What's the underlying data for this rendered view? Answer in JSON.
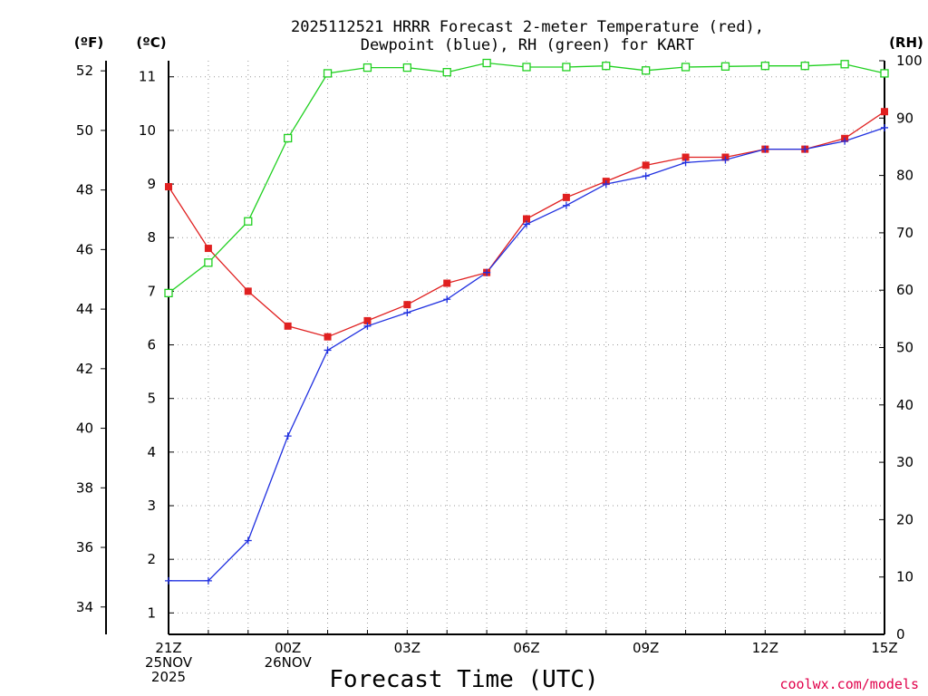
{
  "chart_data": {
    "type": "line",
    "title_line1": "2025112521 HRRR Forecast 2-meter Temperature (red),",
    "title_line2": "Dewpoint (blue), RH (green) for KART",
    "xlabel": "Forecast Time (UTC)",
    "credit": "coolwx.com/models",
    "unit_left_f": "(ºF)",
    "unit_left_c": "(ºC)",
    "unit_right_rh": "(RH)",
    "x_hours": [
      0,
      1,
      2,
      3,
      4,
      5,
      6,
      7,
      8,
      9,
      10,
      11,
      12,
      13,
      14,
      15,
      16,
      17,
      18
    ],
    "x_ticks": [
      {
        "hour": 0,
        "lines": [
          "21Z",
          "25NOV",
          "2025"
        ]
      },
      {
        "hour": 3,
        "lines": [
          "00Z",
          "26NOV"
        ]
      },
      {
        "hour": 6,
        "lines": [
          "03Z"
        ]
      },
      {
        "hour": 9,
        "lines": [
          "06Z"
        ]
      },
      {
        "hour": 12,
        "lines": [
          "09Z"
        ]
      },
      {
        "hour": 15,
        "lines": [
          "12Z"
        ]
      },
      {
        "hour": 18,
        "lines": [
          "15Z"
        ]
      }
    ],
    "celsius_ticks": [
      1,
      2,
      3,
      4,
      5,
      6,
      7,
      8,
      9,
      10,
      11
    ],
    "fahrenheit_ticks": [
      34,
      36,
      38,
      40,
      42,
      44,
      46,
      48,
      50,
      52
    ],
    "rh_ticks": [
      0,
      10,
      20,
      30,
      40,
      50,
      60,
      70,
      80,
      90,
      100
    ],
    "c_range": [
      0.6,
      11.3
    ],
    "rh_range": [
      0,
      100
    ],
    "grid": true,
    "series": [
      {
        "name": "Temperature",
        "units": "C",
        "color": "#e02020",
        "marker": "square-filled",
        "values": [
          8.95,
          7.8,
          7.0,
          6.35,
          6.15,
          6.45,
          6.75,
          7.15,
          7.35,
          8.35,
          8.75,
          9.05,
          9.35,
          9.5,
          9.5,
          9.65,
          9.65,
          9.85,
          10.35
        ]
      },
      {
        "name": "Dewpoint",
        "units": "C",
        "color": "#2030e0",
        "marker": "plus",
        "values": [
          1.6,
          1.6,
          2.35,
          4.3,
          5.9,
          6.35,
          6.6,
          6.85,
          7.35,
          8.25,
          8.6,
          9.0,
          9.15,
          9.4,
          9.45,
          9.65,
          9.65,
          9.8,
          10.05
        ]
      },
      {
        "name": "RH",
        "units": "%",
        "color": "#20d020",
        "marker": "square-open",
        "values": [
          59.5,
          64.8,
          72.0,
          86.5,
          97.8,
          98.8,
          98.8,
          98.0,
          99.6,
          98.9,
          98.9,
          99.1,
          98.3,
          98.9,
          99.0,
          99.1,
          99.1,
          99.4,
          97.8
        ]
      }
    ]
  }
}
